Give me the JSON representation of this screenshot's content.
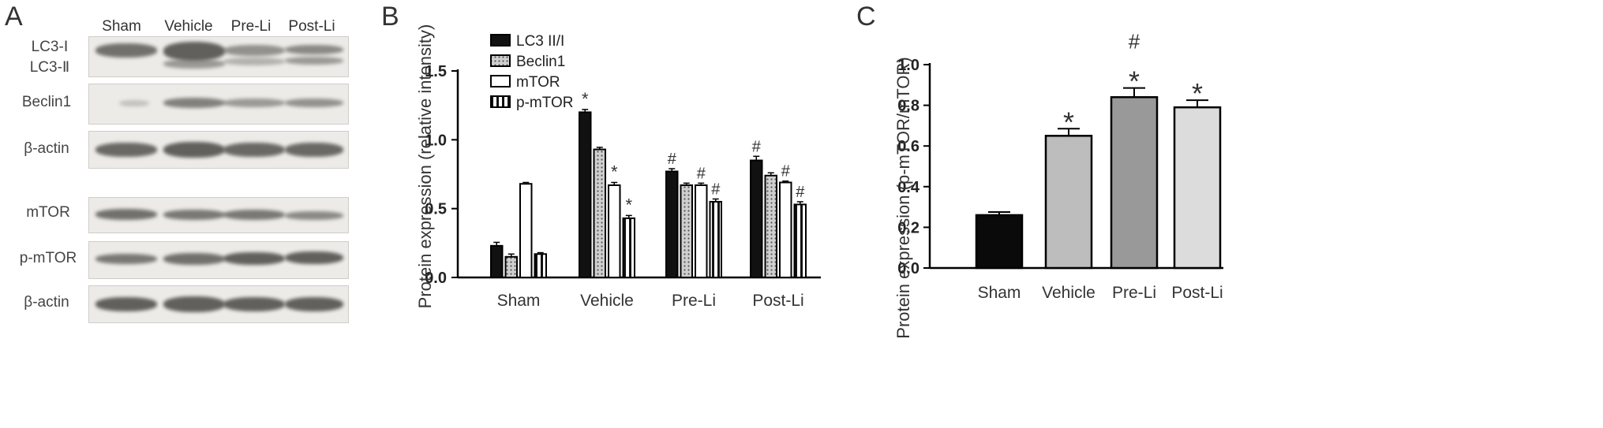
{
  "panels": [
    {
      "letter": "A"
    },
    {
      "letter": "B"
    },
    {
      "letter": "C"
    }
  ],
  "blot": {
    "lanes": [
      "Sham",
      "Vehicle",
      "Pre-Li",
      "Post-Li"
    ],
    "row_labels": {
      "lc3": [
        "LC3-Ⅰ",
        "LC3-Ⅱ"
      ],
      "beclin1": "Beclin1",
      "actin1": "β-actin",
      "mtor": "mTOR",
      "pmtor": "p-mTOR",
      "actin2": "β-actin"
    },
    "band_color": "#4a4845"
  },
  "chart_data": [
    {
      "type": "bar",
      "title": "",
      "xlabel": "",
      "ylabel": "Protein expression (relative intensity)",
      "categories": [
        "Sham",
        "Vehicle",
        "Pre-Li",
        "Post-Li"
      ],
      "ylim": [
        0,
        1.5
      ],
      "yticks": [
        "0.0",
        "0.5",
        "1.0",
        "1.5"
      ],
      "legend_position": "top-left",
      "series": [
        {
          "name": "LC3 II/I",
          "values": [
            0.23,
            1.2,
            0.77,
            0.85
          ],
          "errors": [
            0.025,
            0.02,
            0.02,
            0.03
          ],
          "marks": [
            "",
            "*",
            "#",
            "#"
          ],
          "pattern": "solid-black"
        },
        {
          "name": "Beclin1",
          "values": [
            0.15,
            0.93,
            0.67,
            0.74
          ],
          "errors": [
            0.02,
            0.015,
            0.015,
            0.02
          ],
          "marks": [
            "",
            "",
            "",
            ""
          ],
          "pattern": "dotted-gray"
        },
        {
          "name": "mTOR",
          "values": [
            0.68,
            0.67,
            0.67,
            0.69
          ],
          "errors": [
            0.01,
            0.02,
            0.015,
            0.01
          ],
          "marks": [
            "",
            "*",
            "#",
            "#"
          ],
          "pattern": "white"
        },
        {
          "name": "p-mTOR",
          "values": [
            0.17,
            0.43,
            0.55,
            0.53
          ],
          "errors": [
            0.01,
            0.02,
            0.02,
            0.02
          ],
          "marks": [
            "",
            "*",
            "#",
            "#"
          ],
          "pattern": "striped"
        }
      ]
    },
    {
      "type": "bar",
      "title": "",
      "xlabel": "",
      "ylabel": "Protein expression (p-mTOR/mTOR)",
      "categories": [
        "Sham",
        "Vehicle",
        "Pre-Li",
        "Post-Li"
      ],
      "ylim": [
        0,
        1.0
      ],
      "yticks": [
        "0.0",
        "0.2",
        "0.4",
        "0.6",
        "0.8",
        "1.0"
      ],
      "values": [
        0.26,
        0.65,
        0.84,
        0.79
      ],
      "errors": [
        0.015,
        0.035,
        0.045,
        0.035
      ],
      "marks": [
        [],
        [
          "*"
        ],
        [
          "*",
          "#"
        ],
        [
          "*"
        ]
      ],
      "colors": [
        "#0a0a0a",
        "#bdbdbd",
        "#999999",
        "#dcdcdc"
      ]
    }
  ]
}
